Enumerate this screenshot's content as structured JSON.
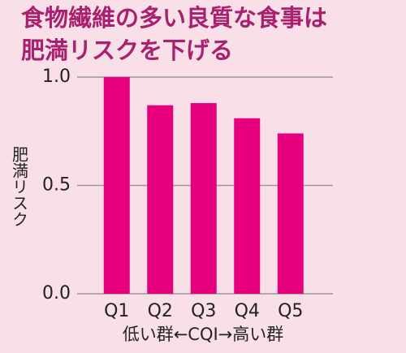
{
  "chart_data": {
    "type": "bar",
    "title": [
      "食物繊維の多い良質な食事は",
      "肥満リスクを下げる"
    ],
    "y_label": "肥満リスク",
    "x_label": "低い群←CQI→高い群",
    "categories": [
      "Q1",
      "Q2",
      "Q3",
      "Q4",
      "Q5"
    ],
    "values": [
      1.0,
      0.87,
      0.88,
      0.81,
      0.74
    ],
    "color": "#e6007e",
    "ylim": [
      0,
      1.0
    ],
    "yticks": [
      {
        "value": 0,
        "label": "0.0"
      },
      {
        "value": 0.5,
        "label": "0.5"
      },
      {
        "value": 1.0,
        "label": "1.0"
      }
    ],
    "grid": true
  }
}
